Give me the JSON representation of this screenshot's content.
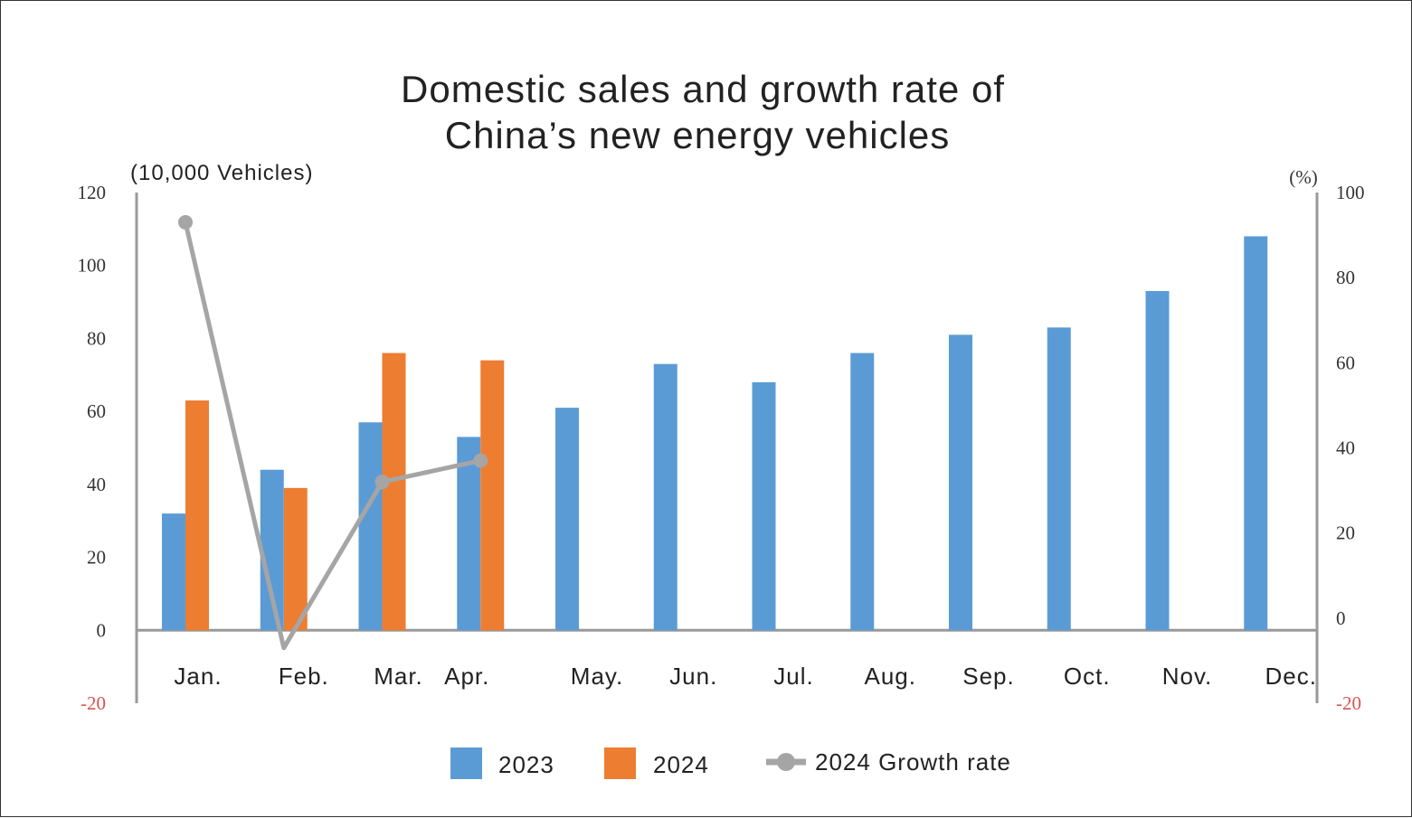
{
  "chart_data": {
    "type": "bar",
    "title_lines": [
      "Domestic sales and growth rate of",
      "China’s new energy vehicles"
    ],
    "ylabel_left": "(10,000 Vehicles)",
    "ylabel_right": "(%)",
    "categories": [
      "Jan.",
      "Feb.",
      "Mar.",
      "Apr.",
      "May.",
      "Jun.",
      "Jul.",
      "Aug.",
      "Sep.",
      "Oct.",
      "Nov.",
      "Dec."
    ],
    "series": [
      {
        "name": "2023",
        "kind": "bar",
        "axis": "left",
        "color": "#5b9bd5",
        "values": [
          32,
          44,
          57,
          53,
          61,
          73,
          68,
          76,
          81,
          83,
          93,
          108
        ]
      },
      {
        "name": "2024",
        "kind": "bar",
        "axis": "left",
        "color": "#ed7d31",
        "values": [
          63,
          39,
          76,
          74,
          null,
          null,
          null,
          null,
          null,
          null,
          null,
          null
        ]
      },
      {
        "name": "2024 Growth rate",
        "kind": "line",
        "axis": "right",
        "color": "#a5a5a5",
        "values": [
          93,
          -7,
          32,
          37,
          null,
          null,
          null,
          null,
          null,
          null,
          null,
          null
        ]
      }
    ],
    "ylim_left": [
      -20,
      120
    ],
    "yticks_left": [
      "120",
      "100",
      "80",
      "60",
      "40",
      "20",
      "0",
      "-20"
    ],
    "ylim_right": [
      -20,
      100
    ],
    "yticks_right": [
      "100",
      "80",
      "60",
      "40",
      "20",
      "0",
      "-20"
    ],
    "negative_tick_color": "#d9534f",
    "legend": [
      "2023",
      "2024",
      "2024 Growth rate"
    ],
    "legend_position": "bottom"
  }
}
